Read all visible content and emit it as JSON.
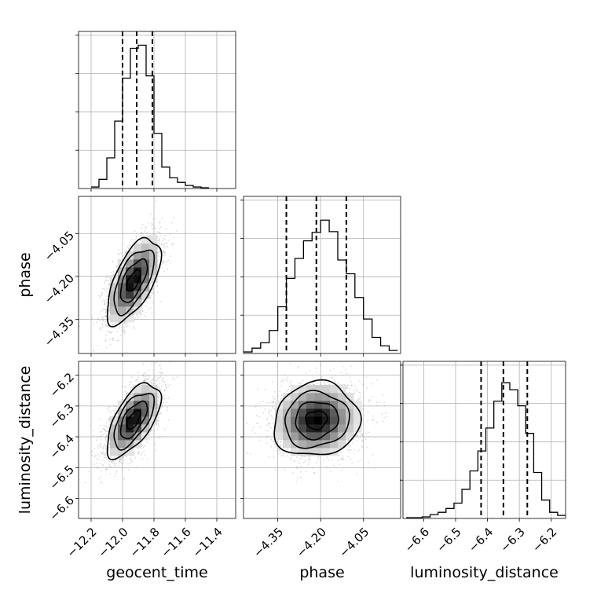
{
  "chart_data": {
    "type": "corner",
    "parameters": [
      "geocent_time",
      "phase",
      "luminosity_distance"
    ],
    "axis_labels": {
      "x": [
        "geocent_time",
        "phase",
        "luminosity_distance"
      ],
      "y": [
        "",
        "phase",
        "luminosity_distance"
      ]
    },
    "grid": true,
    "ranges": {
      "geocent_time": [
        -12.28,
        -11.28
      ],
      "phase": [
        -4.47,
        -3.92
      ],
      "luminosity_distance": [
        -6.665,
        -6.155
      ]
    },
    "ticks": {
      "geocent_time": {
        "values": [
          -12.2,
          -12.0,
          -11.8,
          -11.6,
          -11.4
        ],
        "labels": [
          "−12.2",
          "−12.0",
          "−11.8",
          "−11.6",
          "−11.4"
        ]
      },
      "phase": {
        "values": [
          -4.35,
          -4.2,
          -4.05
        ],
        "labels": [
          "−4.35",
          "−4.20",
          "−4.05"
        ]
      },
      "luminosity_distance": {
        "values": [
          -6.6,
          -6.5,
          -6.4,
          -6.3,
          -6.2
        ],
        "labels": [
          "−6.6",
          "−6.5",
          "−6.4",
          "−6.3",
          "−6.2"
        ]
      }
    },
    "histograms": [
      {
        "parameter": "geocent_time",
        "quantiles": [
          -12.0,
          -11.91,
          -11.81
        ],
        "bin_edges": [
          -12.2,
          -12.15,
          -12.1,
          -12.05,
          -12.0,
          -11.95,
          -11.9,
          -11.85,
          -11.8,
          -11.75,
          -11.7,
          -11.65,
          -11.6,
          -11.55,
          -11.5,
          -11.45
        ],
        "counts": [
          2,
          12,
          40,
          88,
          144,
          183,
          187,
          147,
          72,
          28,
          14,
          8,
          4,
          2,
          1
        ],
        "max_count": 205
      },
      {
        "parameter": "phase",
        "quantiles": [
          -4.32,
          -4.215,
          -4.11
        ],
        "bin_edges": [
          -4.47,
          -4.44,
          -4.41,
          -4.38,
          -4.35,
          -4.32,
          -4.29,
          -4.26,
          -4.23,
          -4.2,
          -4.17,
          -4.14,
          -4.11,
          -4.08,
          -4.05,
          -4.02,
          -3.99,
          -3.96,
          -3.93
        ],
        "counts": [
          2,
          7,
          14,
          30,
          61,
          98,
          124,
          147,
          158,
          174,
          159,
          122,
          104,
          73,
          45,
          21,
          10,
          4
        ],
        "max_count": 205
      },
      {
        "parameter": "luminosity_distance",
        "quantiles": [
          -6.42,
          -6.35,
          -6.275
        ],
        "bin_edges": [
          -6.655,
          -6.63,
          -6.605,
          -6.58,
          -6.555,
          -6.53,
          -6.505,
          -6.48,
          -6.455,
          -6.43,
          -6.405,
          -6.38,
          -6.355,
          -6.33,
          -6.305,
          -6.28,
          -6.255,
          -6.23,
          -6.205,
          -6.18,
          -6.155
        ],
        "counts": [
          1,
          1,
          2,
          5,
          8,
          13,
          20,
          38,
          62,
          88,
          118,
          153,
          177,
          168,
          147,
          111,
          60,
          24,
          8,
          4
        ],
        "max_count": 205
      }
    ],
    "pairs": [
      {
        "x": "geocent_time",
        "y": "phase",
        "center": [
          -11.93,
          -4.215
        ],
        "sigma": [
          0.085,
          0.075
        ],
        "correlation": 0.62,
        "n_points": 2600
      },
      {
        "x": "geocent_time",
        "y": "luminosity_distance",
        "center": [
          -11.93,
          -6.345
        ],
        "sigma": [
          0.085,
          0.06
        ],
        "correlation": 0.62,
        "n_points": 2600
      },
      {
        "x": "phase",
        "y": "luminosity_distance",
        "center": [
          -4.215,
          -6.345
        ],
        "sigma": [
          0.075,
          0.06
        ],
        "correlation": 0.08,
        "n_points": 2600
      }
    ]
  }
}
